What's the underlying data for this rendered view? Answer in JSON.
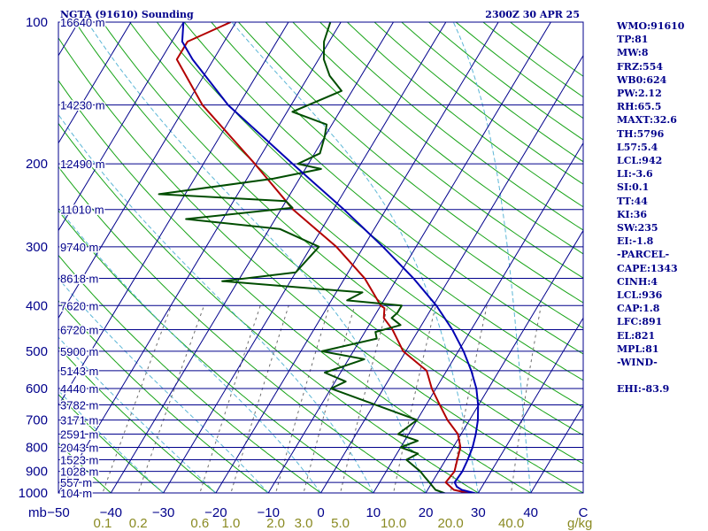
{
  "title": "NGTA (91610) Sounding",
  "valid_time": "2300Z 30 APR 25",
  "colors": {
    "frame": "#00008b",
    "isobar": "#00008b",
    "isotherm": "#00008b",
    "dry_adiabat": "#17a317",
    "moist_adiabat": "#5bb6d6",
    "mixing_ratio": "#6e6e6e",
    "temperature": "#b30000",
    "dewpoint": "#004d00",
    "parcel": "#0000b3",
    "mixing_label": "#8a8a22",
    "text": "#00008b"
  },
  "stats": [
    "WMO:91610",
    "TP:81",
    "MW:8",
    "FRZ:554",
    "WB0:624",
    "PW:2.12",
    "RH:65.5",
    "MAXT:32.6",
    "TH:5796",
    "L57:5.4",
    "LCL:942",
    "LI:-3.6",
    "SI:0.1",
    "TT:44",
    "KI:36",
    "SW:235",
    "EI:-1.8",
    "-PARCEL-",
    "CAPE:1343",
    "CINH:4",
    "LCL:936",
    "CAP:1.8",
    "LFC:891",
    "EL:821",
    "MPL:81",
    "-WIND-",
    "",
    "EHI:-83.9"
  ],
  "chart_data": {
    "type": "line",
    "diagram": "skew-t log-p",
    "y_axis_unit": "mb",
    "x_axis_unit": "C",
    "pressure_range": [
      1000,
      100
    ],
    "temperature_range": [
      -50,
      50
    ],
    "pressure_ticks": [
      {
        "p": 100,
        "label": "100"
      },
      {
        "p": 200,
        "label": "200"
      },
      {
        "p": 300,
        "label": "300"
      },
      {
        "p": 400,
        "label": "400"
      },
      {
        "p": 500,
        "label": "500"
      },
      {
        "p": 600,
        "label": "600"
      },
      {
        "p": 700,
        "label": "700"
      },
      {
        "p": 800,
        "label": "800"
      },
      {
        "p": 900,
        "label": "900"
      },
      {
        "p": 1000,
        "label": "1000"
      }
    ],
    "temperature_ticks": [
      {
        "t": -50,
        "label": "−50"
      },
      {
        "t": -40,
        "label": "−40"
      },
      {
        "t": -30,
        "label": "−30"
      },
      {
        "t": -20,
        "label": "−20"
      },
      {
        "t": -10,
        "label": "−10"
      },
      {
        "t": 0,
        "label": "0"
      },
      {
        "t": 10,
        "label": "10"
      },
      {
        "t": 20,
        "label": "20"
      },
      {
        "t": 30,
        "label": "30"
      },
      {
        "t": 40,
        "label": "40"
      },
      {
        "t": 50,
        "label": "C"
      }
    ],
    "height_labels": [
      {
        "p": 100,
        "label": "16640 m"
      },
      {
        "p": 150,
        "label": "14230 m"
      },
      {
        "p": 200,
        "label": "12490 m"
      },
      {
        "p": 250,
        "label": "11010 m"
      },
      {
        "p": 300,
        "label": "9740 m"
      },
      {
        "p": 350,
        "label": "8618 m"
      },
      {
        "p": 400,
        "label": "7620 m"
      },
      {
        "p": 450,
        "label": "6720 m"
      },
      {
        "p": 500,
        "label": "5900 m"
      },
      {
        "p": 550,
        "label": "5143 m"
      },
      {
        "p": 600,
        "label": "4440 m"
      },
      {
        "p": 650,
        "label": "3782 m"
      },
      {
        "p": 700,
        "label": "3171 m"
      },
      {
        "p": 750,
        "label": "2591 m"
      },
      {
        "p": 800,
        "label": "2043 m"
      },
      {
        "p": 850,
        "label": "1523 m"
      },
      {
        "p": 900,
        "label": "1028 m"
      },
      {
        "p": 950,
        "label": "557 m"
      },
      {
        "p": 1000,
        "label": "104 m"
      }
    ],
    "mixing_ratio_labels": [
      {
        "w": 0.1,
        "label": "0.1"
      },
      {
        "w": 0.2,
        "label": "0.2"
      },
      {
        "w": 0.6,
        "label": "0.6"
      },
      {
        "w": 1.0,
        "label": "1.0"
      },
      {
        "w": 2.0,
        "label": "2.0"
      },
      {
        "w": 3.0,
        "label": "3.0"
      },
      {
        "w": 5.0,
        "label": "5.0"
      },
      {
        "w": 10.0,
        "label": "10.0"
      },
      {
        "w": 20.0,
        "label": "20.0"
      },
      {
        "w": 40.0,
        "label": "40.0"
      }
    ],
    "mixing_ratio_unit": "g/kg",
    "series": [
      {
        "key": "temperature",
        "points": [
          [
            1008,
            30.5
          ],
          [
            1000,
            28
          ],
          [
            985,
            25
          ],
          [
            950,
            22.6
          ],
          [
            925,
            22.8
          ],
          [
            900,
            23
          ],
          [
            850,
            22.2
          ],
          [
            800,
            21.4
          ],
          [
            750,
            19.4
          ],
          [
            700,
            15.8
          ],
          [
            650,
            12.6
          ],
          [
            600,
            9.2
          ],
          [
            550,
            6.2
          ],
          [
            500,
            -0.5
          ],
          [
            450,
            -5
          ],
          [
            425,
            -8
          ],
          [
            405,
            -9
          ],
          [
            400,
            -10
          ],
          [
            350,
            -16.2
          ],
          [
            300,
            -25.2
          ],
          [
            250,
            -37.7
          ],
          [
            200,
            -50.2
          ],
          [
            150,
            -66.9
          ],
          [
            120,
            -77
          ],
          [
            110,
            -77
          ],
          [
            100,
            -71
          ]
        ]
      },
      {
        "key": "dewpoint",
        "points": [
          [
            1008,
            24.5
          ],
          [
            1000,
            23.5
          ],
          [
            985,
            21.5
          ],
          [
            950,
            19.5
          ],
          [
            925,
            18
          ],
          [
            900,
            16.5
          ],
          [
            850,
            12.5
          ],
          [
            825,
            14
          ],
          [
            800,
            10
          ],
          [
            775,
            12.5
          ],
          [
            750,
            8
          ],
          [
            700,
            10
          ],
          [
            600,
            -10
          ],
          [
            580,
            -8
          ],
          [
            555,
            -13
          ],
          [
            520,
            -7
          ],
          [
            500,
            -16
          ],
          [
            470,
            -7
          ],
          [
            455,
            -8
          ],
          [
            440,
            -4
          ],
          [
            425,
            -6.5
          ],
          [
            415,
            -6
          ],
          [
            400,
            -6
          ],
          [
            390,
            -17
          ],
          [
            375,
            -15
          ],
          [
            355,
            -43
          ],
          [
            340,
            -30
          ],
          [
            300,
            -28.5
          ],
          [
            275,
            -38
          ],
          [
            262,
            -57
          ],
          [
            248,
            -38
          ],
          [
            240,
            -40
          ],
          [
            232,
            -65
          ],
          [
            215,
            -45
          ],
          [
            205,
            -37
          ],
          [
            200,
            -42
          ],
          [
            190,
            -39
          ],
          [
            175,
            -40
          ],
          [
            165,
            -41
          ],
          [
            155,
            -49
          ],
          [
            140,
            -42
          ],
          [
            130,
            -46
          ],
          [
            120,
            -49
          ],
          [
            110,
            -51
          ],
          [
            100,
            -52
          ]
        ]
      },
      {
        "key": "parcel",
        "points": [
          [
            1008,
            30.5
          ],
          [
            1000,
            29.2
          ],
          [
            985,
            26.5
          ],
          [
            970,
            25.2
          ],
          [
            950,
            24.3
          ],
          [
            925,
            24.4
          ],
          [
            900,
            24.5
          ],
          [
            850,
            24.2
          ],
          [
            800,
            23.7
          ],
          [
            750,
            22.8
          ],
          [
            700,
            21.6
          ],
          [
            650,
            19.9
          ],
          [
            600,
            17.7
          ],
          [
            550,
            14.7
          ],
          [
            500,
            11
          ],
          [
            450,
            6.4
          ],
          [
            400,
            0.6
          ],
          [
            350,
            -6.9
          ],
          [
            300,
            -16.3
          ],
          [
            250,
            -28
          ],
          [
            200,
            -43
          ],
          [
            150,
            -62
          ],
          [
            120,
            -74
          ],
          [
            110,
            -78
          ],
          [
            100,
            -80
          ]
        ]
      }
    ]
  }
}
